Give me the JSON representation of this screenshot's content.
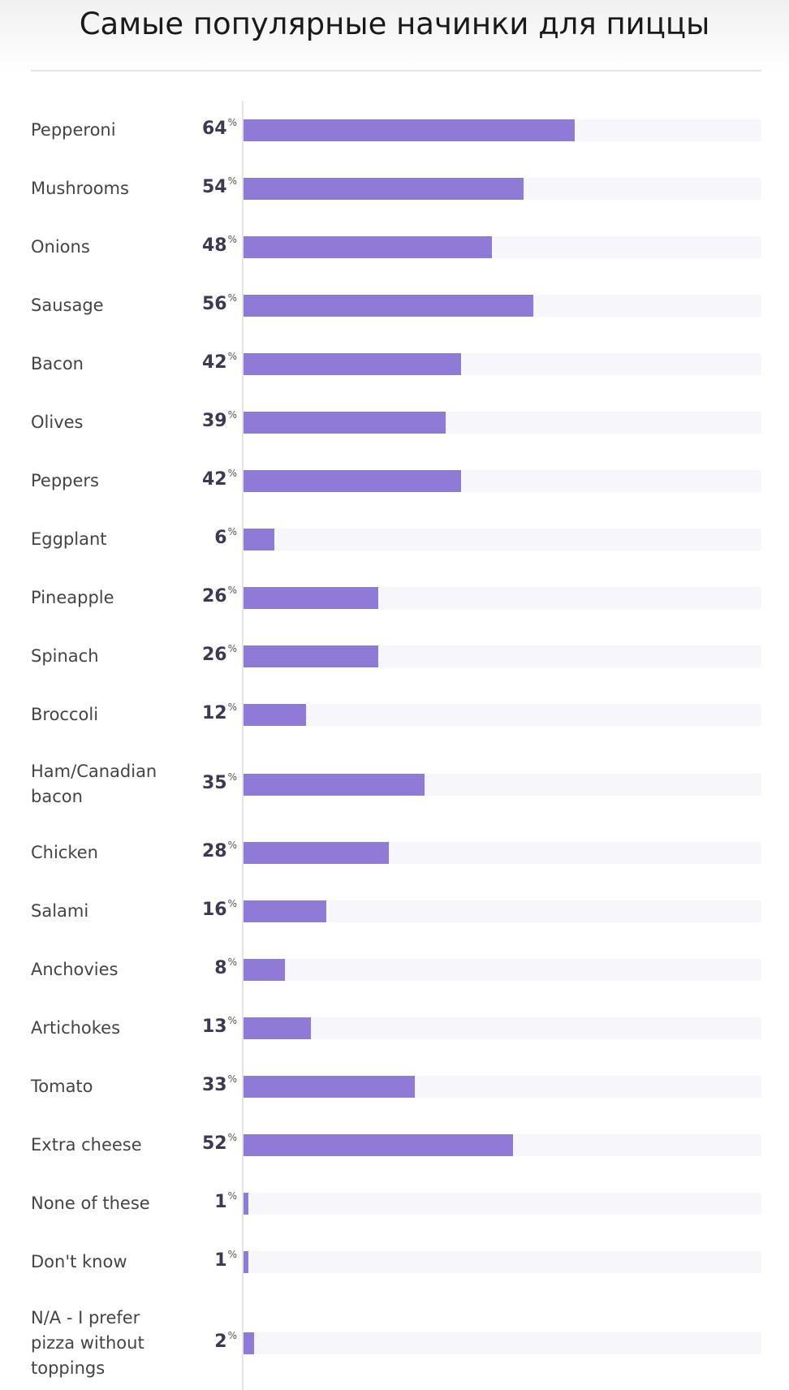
{
  "chart_data": {
    "type": "bar",
    "orientation": "horizontal",
    "title": "Самые популярные начинки для пиццы",
    "value_suffix": "%",
    "xlim": [
      0,
      100
    ],
    "bar_color": "#8f7ad8",
    "track_color": "#f7f7fb",
    "grid": false,
    "categories": [
      "Pepperoni",
      "Mushrooms",
      "Onions",
      "Sausage",
      "Bacon",
      "Olives",
      "Peppers",
      "Eggplant",
      "Pineapple",
      "Spinach",
      "Broccoli",
      "Ham/Canadian bacon",
      "Chicken",
      "Salami",
      "Anchovies",
      "Artichokes",
      "Tomato",
      "Extra cheese",
      "None of these",
      "Don't know",
      "N/A - I prefer pizza without toppings"
    ],
    "values": [
      64,
      54,
      48,
      56,
      42,
      39,
      42,
      6,
      26,
      26,
      12,
      35,
      28,
      16,
      8,
      13,
      33,
      52,
      1,
      1,
      2
    ]
  }
}
